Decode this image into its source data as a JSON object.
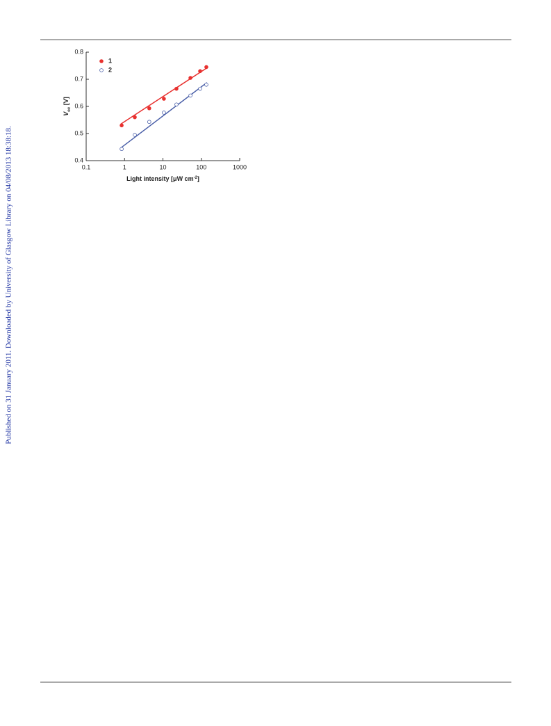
{
  "sidebar": "Published on 31 January 2011. Downloaded by University of Glasgow Library on 04/08/2013 18:38:18.",
  "chart_data": {
    "type": "scatter",
    "ylabel": [
      "V",
      "oc",
      " [V]"
    ],
    "xlabel": [
      "Light intensity [μW cm",
      "-2",
      "]"
    ],
    "xlog": true,
    "xlim": [
      0.1,
      1000
    ],
    "xticks": [
      0.1,
      1,
      10,
      100,
      1000
    ],
    "ylim": [
      0.4,
      0.8
    ],
    "yticks": [
      0.4,
      0.5,
      0.6,
      0.7,
      0.8
    ],
    "legend": "upper left",
    "series": [
      {
        "name": "1",
        "color": "#e8312f",
        "filled": true,
        "x": [
          0.84,
          1.85,
          4.4,
          10.6,
          22.5,
          52,
          93,
          135
        ],
        "values": [
          0.53,
          0.56,
          0.593,
          0.628,
          0.665,
          0.705,
          0.73,
          0.745
        ],
        "fit": {
          "x": [
            0.8,
            140
          ],
          "values": [
            0.535,
            0.742
          ]
        }
      },
      {
        "name": "2",
        "color": "#4a5fa8",
        "filled": false,
        "x": [
          0.84,
          1.85,
          4.4,
          10.6,
          22.5,
          52,
          93,
          135
        ],
        "values": [
          0.443,
          0.495,
          0.543,
          0.577,
          0.607,
          0.64,
          0.665,
          0.68
        ],
        "fit": {
          "x": [
            0.8,
            140
          ],
          "values": [
            0.447,
            0.688
          ]
        }
      }
    ]
  }
}
